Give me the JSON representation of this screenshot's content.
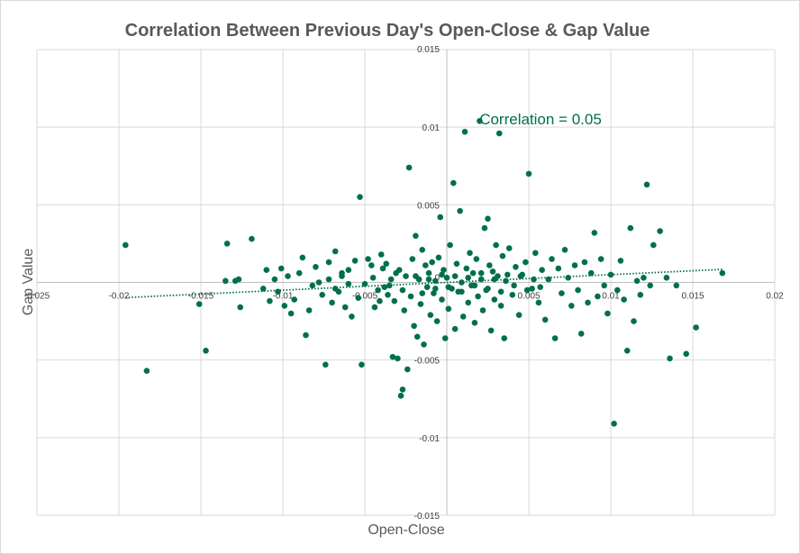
{
  "chart_data": {
    "type": "scatter",
    "title": "Correlation Between Previous  Day's Open-Close & Gap Value",
    "xlabel": "Open-Close",
    "ylabel": "Gap Value",
    "xlim": [
      -0.025,
      0.02
    ],
    "ylim": [
      -0.015,
      0.015
    ],
    "x_ticks": [
      -0.025,
      -0.02,
      -0.015,
      -0.01,
      -0.005,
      0,
      0.005,
      0.01,
      0.015,
      0.02
    ],
    "x_tick_labels": [
      "-0.025",
      "-0.02",
      "-0.015",
      "-0.01",
      "-0.005",
      "0",
      "0.005",
      "0.01",
      "0.015",
      "0.02"
    ],
    "y_ticks": [
      -0.015,
      -0.01,
      -0.005,
      0,
      0.005,
      0.01,
      0.015
    ],
    "y_tick_labels": [
      "-0.015",
      "-0.01",
      "-0.005",
      "0",
      "0.005",
      "0.01",
      "0.015"
    ],
    "grid": true,
    "annotation": "Correlation = 0.05",
    "marker_color": "#00704A",
    "trendline": {
      "style": "dotted-linear",
      "slope": 0.05,
      "intercept": 0.0
    }
  }
}
